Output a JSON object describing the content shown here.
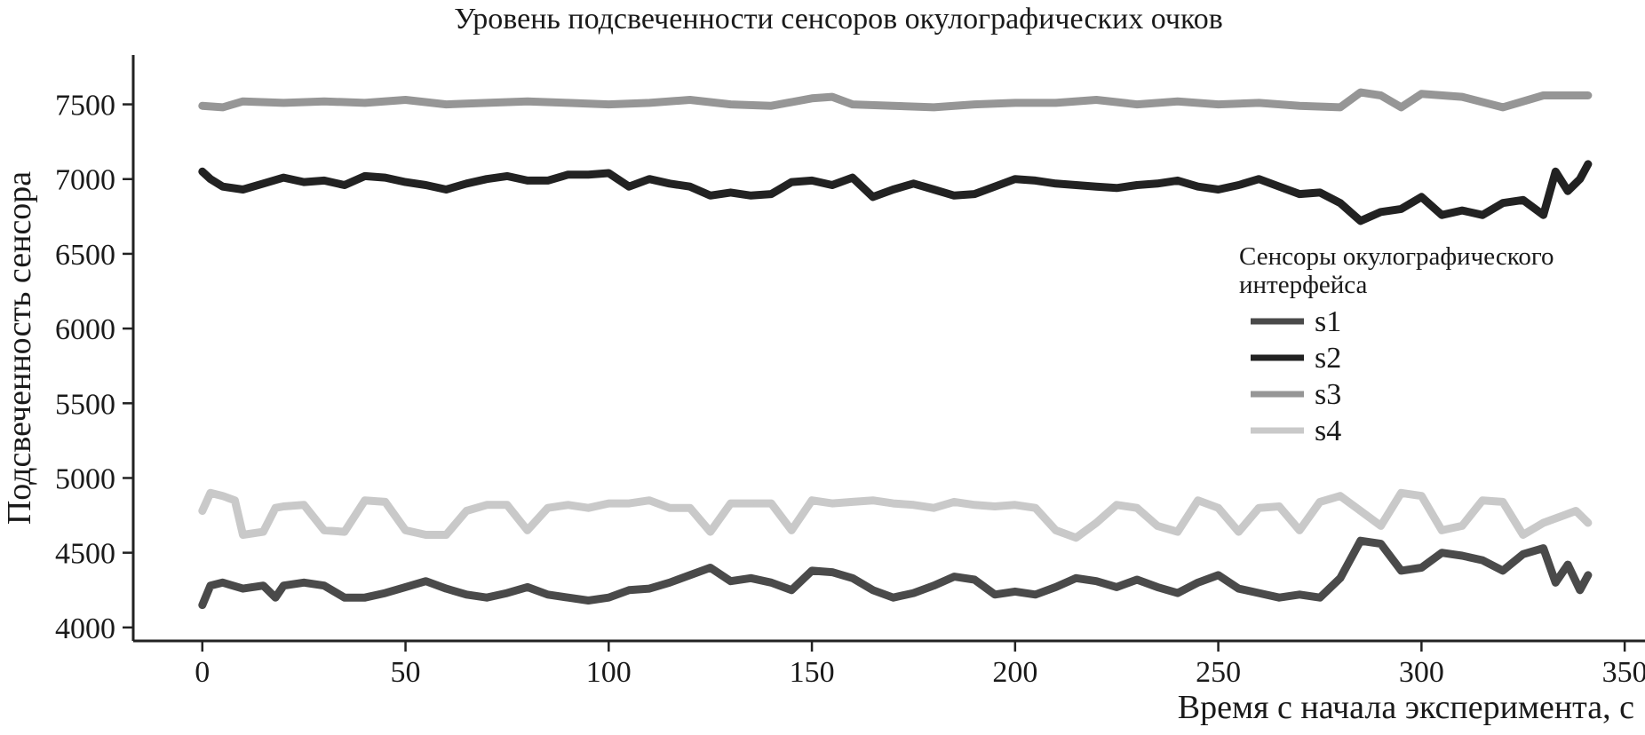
{
  "chart_data": {
    "type": "line",
    "title": "Уровень подсвеченности сенсоров окулографических очков",
    "xlabel": "Время с начала эксперимента, с",
    "ylabel": "Подсвеченность сенсора",
    "xlim": [
      -17,
      355
    ],
    "ylim": [
      3910,
      7830
    ],
    "x_ticks": [
      0,
      50,
      100,
      150,
      200,
      250,
      300,
      350
    ],
    "y_ticks": [
      4000,
      4500,
      5000,
      5500,
      6000,
      6500,
      7000,
      7500
    ],
    "grid": false,
    "legend": {
      "title_lines": [
        "Сенсоры окулографического",
        "интерфейса"
      ],
      "placement": "center-right"
    },
    "colors": {
      "s1": "#4a4a4a",
      "s2": "#222222",
      "s3": "#969696",
      "s4": "#c9c9c9"
    },
    "series": [
      {
        "name": "s1",
        "x": [
          0,
          2,
          5,
          10,
          15,
          18,
          20,
          25,
          30,
          35,
          40,
          45,
          50,
          55,
          60,
          65,
          70,
          75,
          80,
          85,
          90,
          95,
          100,
          105,
          110,
          115,
          120,
          125,
          130,
          135,
          140,
          145,
          150,
          155,
          160,
          165,
          170,
          175,
          180,
          185,
          190,
          195,
          200,
          205,
          210,
          215,
          220,
          225,
          230,
          235,
          240,
          245,
          250,
          255,
          260,
          265,
          270,
          275,
          280,
          285,
          290,
          295,
          300,
          305,
          310,
          315,
          320,
          325,
          330,
          333,
          336,
          339,
          341
        ],
        "y": [
          4150,
          4280,
          4300,
          4260,
          4280,
          4200,
          4280,
          4300,
          4280,
          4200,
          4200,
          4230,
          4270,
          4310,
          4260,
          4220,
          4200,
          4230,
          4270,
          4220,
          4200,
          4180,
          4200,
          4250,
          4260,
          4300,
          4350,
          4400,
          4310,
          4330,
          4300,
          4250,
          4380,
          4370,
          4330,
          4250,
          4200,
          4230,
          4280,
          4340,
          4320,
          4220,
          4240,
          4220,
          4270,
          4330,
          4310,
          4270,
          4320,
          4270,
          4230,
          4300,
          4350,
          4260,
          4230,
          4200,
          4220,
          4200,
          4330,
          4580,
          4560,
          4380,
          4400,
          4500,
          4480,
          4450,
          4380,
          4490,
          4530,
          4300,
          4420,
          4250,
          4350
        ]
      },
      {
        "name": "s2",
        "x": [
          0,
          2,
          5,
          10,
          15,
          20,
          25,
          30,
          35,
          40,
          45,
          50,
          55,
          60,
          65,
          70,
          75,
          80,
          85,
          90,
          95,
          100,
          105,
          110,
          115,
          120,
          125,
          130,
          135,
          140,
          145,
          150,
          155,
          160,
          165,
          170,
          175,
          180,
          185,
          190,
          195,
          200,
          205,
          210,
          215,
          220,
          225,
          230,
          235,
          240,
          245,
          250,
          255,
          260,
          265,
          270,
          275,
          280,
          285,
          290,
          295,
          300,
          305,
          310,
          315,
          320,
          325,
          330,
          333,
          336,
          339,
          341
        ],
        "y": [
          7050,
          7000,
          6950,
          6930,
          6970,
          7010,
          6980,
          6990,
          6960,
          7020,
          7010,
          6980,
          6960,
          6930,
          6970,
          7000,
          7020,
          6990,
          6990,
          7030,
          7030,
          7040,
          6950,
          7000,
          6970,
          6950,
          6890,
          6910,
          6890,
          6900,
          6980,
          6990,
          6960,
          7010,
          6880,
          6930,
          6970,
          6930,
          6890,
          6900,
          6950,
          7000,
          6990,
          6970,
          6960,
          6950,
          6940,
          6960,
          6970,
          6990,
          6950,
          6930,
          6960,
          7000,
          6950,
          6900,
          6910,
          6840,
          6720,
          6780,
          6800,
          6880,
          6760,
          6790,
          6760,
          6840,
          6860,
          6760,
          7050,
          6920,
          7000,
          7100
        ]
      },
      {
        "name": "s3",
        "x": [
          0,
          5,
          10,
          20,
          30,
          40,
          50,
          60,
          70,
          80,
          90,
          100,
          110,
          120,
          130,
          140,
          150,
          155,
          160,
          170,
          180,
          190,
          200,
          210,
          220,
          230,
          240,
          250,
          260,
          270,
          280,
          285,
          290,
          295,
          300,
          310,
          320,
          330,
          341
        ],
        "y": [
          7490,
          7480,
          7520,
          7510,
          7520,
          7510,
          7530,
          7500,
          7510,
          7520,
          7510,
          7500,
          7510,
          7530,
          7500,
          7490,
          7540,
          7550,
          7500,
          7490,
          7480,
          7500,
          7510,
          7510,
          7530,
          7500,
          7520,
          7500,
          7510,
          7490,
          7480,
          7580,
          7560,
          7480,
          7570,
          7550,
          7480,
          7560,
          7560
        ]
      },
      {
        "name": "s4",
        "x": [
          0,
          2,
          5,
          8,
          10,
          15,
          18,
          20,
          25,
          30,
          35,
          40,
          45,
          50,
          55,
          60,
          65,
          70,
          75,
          80,
          85,
          90,
          95,
          100,
          105,
          110,
          115,
          120,
          125,
          130,
          135,
          140,
          145,
          150,
          155,
          160,
          165,
          170,
          175,
          180,
          185,
          190,
          195,
          200,
          205,
          210,
          215,
          220,
          225,
          230,
          235,
          240,
          245,
          250,
          255,
          260,
          265,
          270,
          275,
          280,
          285,
          290,
          295,
          300,
          305,
          310,
          315,
          320,
          325,
          330,
          335,
          338,
          341
        ],
        "y": [
          4780,
          4900,
          4880,
          4850,
          4620,
          4640,
          4800,
          4810,
          4820,
          4650,
          4640,
          4850,
          4840,
          4650,
          4620,
          4620,
          4780,
          4820,
          4820,
          4650,
          4800,
          4820,
          4800,
          4830,
          4830,
          4850,
          4800,
          4800,
          4640,
          4830,
          4830,
          4830,
          4650,
          4850,
          4830,
          4840,
          4850,
          4830,
          4820,
          4800,
          4840,
          4820,
          4810,
          4820,
          4800,
          4650,
          4600,
          4700,
          4820,
          4800,
          4680,
          4640,
          4850,
          4800,
          4640,
          4800,
          4810,
          4650,
          4840,
          4880,
          4780,
          4680,
          4900,
          4880,
          4650,
          4680,
          4850,
          4840,
          4620,
          4700,
          4750,
          4780,
          4700
        ]
      }
    ]
  }
}
